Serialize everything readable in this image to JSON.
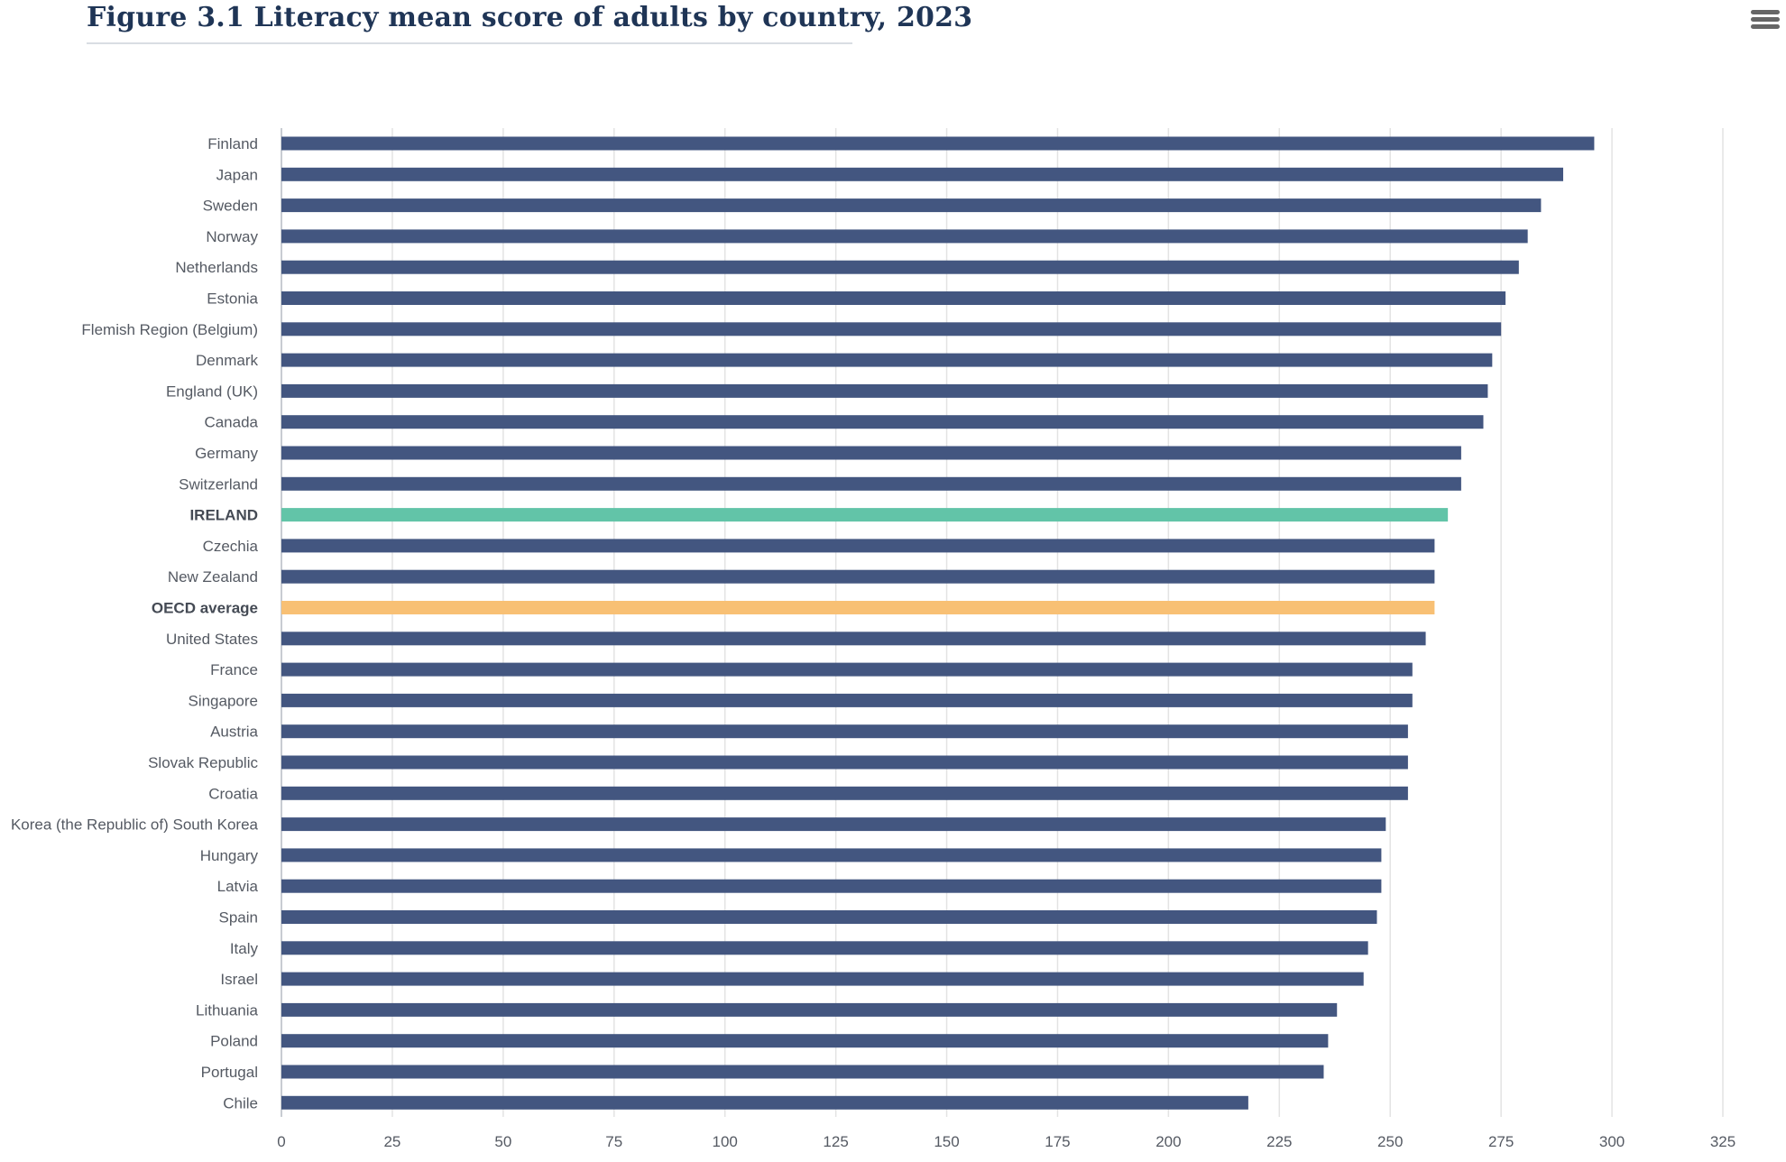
{
  "title": "Figure 3.1 Literacy mean score of adults by country, 2023",
  "menu": {
    "icon": "hamburger-menu-icon"
  },
  "colors": {
    "bar": "#435680",
    "ireland": "#62c4a8",
    "oecd_average": "#f8c074",
    "grid": "#e3e3e3",
    "axis": "#c8ccd2"
  },
  "chart_data": {
    "type": "bar",
    "orientation": "horizontal",
    "title": "Figure 3.1 Literacy mean score of adults by country, 2023",
    "xlabel": "",
    "ylabel": "",
    "xlim": [
      0,
      325
    ],
    "x_ticks": [
      0,
      25,
      50,
      75,
      100,
      125,
      150,
      175,
      200,
      225,
      250,
      275,
      300,
      325
    ],
    "grid": true,
    "legend": "none",
    "categories": [
      "Finland",
      "Japan",
      "Sweden",
      "Norway",
      "Netherlands",
      "Estonia",
      "Flemish Region (Belgium)",
      "Denmark",
      "England (UK)",
      "Canada",
      "Germany",
      "Switzerland",
      "IRELAND",
      "Czechia",
      "New Zealand",
      "OECD average",
      "United States",
      "France",
      "Singapore",
      "Austria",
      "Slovak Republic",
      "Croatia",
      "Korea (the Republic of) South Korea",
      "Hungary",
      "Latvia",
      "Spain",
      "Italy",
      "Israel",
      "Lithuania",
      "Poland",
      "Portugal",
      "Chile"
    ],
    "values": [
      296,
      289,
      284,
      281,
      279,
      276,
      275,
      273,
      272,
      271,
      266,
      266,
      263,
      260,
      260,
      260,
      258,
      255,
      255,
      254,
      254,
      254,
      249,
      248,
      248,
      247,
      245,
      244,
      238,
      236,
      235,
      218
    ],
    "highlight": {
      "IRELAND": "ireland",
      "OECD average": "oecd_average"
    },
    "bold_categories": [
      "IRELAND",
      "OECD average"
    ]
  }
}
